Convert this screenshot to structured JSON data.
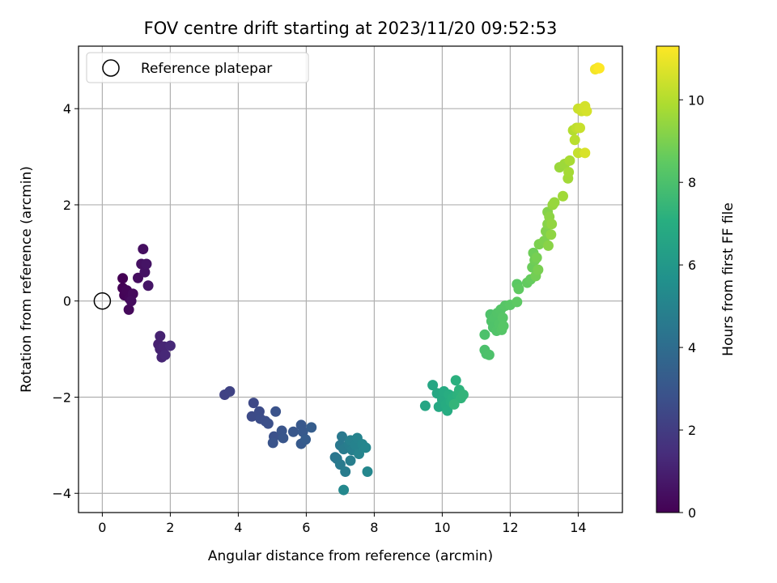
{
  "chart_data": {
    "type": "scatter",
    "title": "FOV centre drift starting at 2023/11/20 09:52:53",
    "xlabel": "Angular distance from reference (arcmin)",
    "ylabel": "Rotation from reference (arcmin)",
    "xlim": [
      -0.7,
      15.3
    ],
    "ylim": [
      -4.4,
      5.3
    ],
    "xticks": [
      0,
      2,
      4,
      6,
      8,
      10,
      12,
      14
    ],
    "yticks": [
      -4,
      -2,
      0,
      2,
      4
    ],
    "grid": true,
    "legend": {
      "placement": "top-left",
      "entries": [
        "Reference platepar"
      ]
    },
    "reference_point": {
      "x": 0,
      "y": 0,
      "label": "Reference platepar"
    },
    "colorbar": {
      "label": "Hours from first FF file",
      "range": [
        0,
        11.3
      ],
      "ticks": [
        0,
        2,
        4,
        6,
        8,
        10
      ],
      "colormap": "viridis"
    },
    "points": [
      {
        "x": 0.6,
        "y": 0.47,
        "t": 0.0
      },
      {
        "x": 0.6,
        "y": 0.27,
        "t": 0.05
      },
      {
        "x": 0.65,
        "y": 0.12,
        "t": 0.1
      },
      {
        "x": 0.72,
        "y": 0.22,
        "t": 0.15
      },
      {
        "x": 0.8,
        "y": 0.05,
        "t": 0.2
      },
      {
        "x": 0.78,
        "y": -0.18,
        "t": 0.25
      },
      {
        "x": 0.9,
        "y": 0.15,
        "t": 0.3
      },
      {
        "x": 0.85,
        "y": 0.0,
        "t": 0.35
      },
      {
        "x": 1.05,
        "y": 0.48,
        "t": 0.4
      },
      {
        "x": 1.2,
        "y": 1.08,
        "t": 0.45
      },
      {
        "x": 1.15,
        "y": 0.77,
        "t": 0.5
      },
      {
        "x": 1.25,
        "y": 0.6,
        "t": 0.55
      },
      {
        "x": 1.3,
        "y": 0.77,
        "t": 0.6
      },
      {
        "x": 1.35,
        "y": 0.32,
        "t": 0.65
      },
      {
        "x": 1.65,
        "y": -0.9,
        "t": 1.0
      },
      {
        "x": 1.7,
        "y": -0.73,
        "t": 1.05
      },
      {
        "x": 1.7,
        "y": -1.0,
        "t": 1.1
      },
      {
        "x": 1.75,
        "y": -1.17,
        "t": 1.15
      },
      {
        "x": 1.82,
        "y": -0.95,
        "t": 1.2
      },
      {
        "x": 1.85,
        "y": -1.12,
        "t": 1.25
      },
      {
        "x": 2.0,
        "y": -0.93,
        "t": 1.3
      },
      {
        "x": 3.6,
        "y": -1.95,
        "t": 2.2
      },
      {
        "x": 3.75,
        "y": -1.88,
        "t": 2.25
      },
      {
        "x": 4.45,
        "y": -2.12,
        "t": 2.5
      },
      {
        "x": 4.4,
        "y": -2.4,
        "t": 2.55
      },
      {
        "x": 4.62,
        "y": -2.3,
        "t": 2.6
      },
      {
        "x": 4.65,
        "y": -2.45,
        "t": 2.65
      },
      {
        "x": 4.8,
        "y": -2.5,
        "t": 2.7
      },
      {
        "x": 4.88,
        "y": -2.55,
        "t": 2.75
      },
      {
        "x": 5.05,
        "y": -2.82,
        "t": 2.8
      },
      {
        "x": 5.1,
        "y": -2.3,
        "t": 2.85
      },
      {
        "x": 5.02,
        "y": -2.95,
        "t": 2.9
      },
      {
        "x": 5.28,
        "y": -2.7,
        "t": 2.95
      },
      {
        "x": 5.32,
        "y": -2.85,
        "t": 3.0
      },
      {
        "x": 5.62,
        "y": -2.72,
        "t": 3.05
      },
      {
        "x": 5.85,
        "y": -2.58,
        "t": 3.1
      },
      {
        "x": 5.9,
        "y": -2.72,
        "t": 3.15
      },
      {
        "x": 5.85,
        "y": -2.97,
        "t": 3.2
      },
      {
        "x": 5.98,
        "y": -2.88,
        "t": 3.25
      },
      {
        "x": 6.15,
        "y": -2.63,
        "t": 3.3
      },
      {
        "x": 6.85,
        "y": -3.25,
        "t": 4.4
      },
      {
        "x": 6.9,
        "y": -3.28,
        "t": 4.45
      },
      {
        "x": 7.0,
        "y": -3.0,
        "t": 4.5
      },
      {
        "x": 7.05,
        "y": -2.82,
        "t": 4.55
      },
      {
        "x": 7.0,
        "y": -3.4,
        "t": 4.6
      },
      {
        "x": 7.1,
        "y": -3.08,
        "t": 4.65
      },
      {
        "x": 7.15,
        "y": -3.55,
        "t": 4.7
      },
      {
        "x": 7.25,
        "y": -2.98,
        "t": 4.75
      },
      {
        "x": 7.3,
        "y": -3.32,
        "t": 4.8
      },
      {
        "x": 7.35,
        "y": -3.1,
        "t": 4.85
      },
      {
        "x": 7.3,
        "y": -2.9,
        "t": 4.9
      },
      {
        "x": 7.45,
        "y": -3.0,
        "t": 4.95
      },
      {
        "x": 7.5,
        "y": -2.85,
        "t": 5.0
      },
      {
        "x": 7.55,
        "y": -3.18,
        "t": 5.05
      },
      {
        "x": 7.65,
        "y": -2.98,
        "t": 5.1
      },
      {
        "x": 7.75,
        "y": -3.05,
        "t": 5.15
      },
      {
        "x": 7.8,
        "y": -3.55,
        "t": 5.2
      },
      {
        "x": 7.1,
        "y": -3.93,
        "t": 5.25
      },
      {
        "x": 9.5,
        "y": -2.18,
        "t": 6.6
      },
      {
        "x": 9.72,
        "y": -1.75,
        "t": 6.65
      },
      {
        "x": 9.85,
        "y": -1.92,
        "t": 6.7
      },
      {
        "x": 9.9,
        "y": -2.2,
        "t": 6.75
      },
      {
        "x": 10.0,
        "y": -2.05,
        "t": 6.8
      },
      {
        "x": 10.05,
        "y": -1.88,
        "t": 6.85
      },
      {
        "x": 10.1,
        "y": -2.15,
        "t": 6.9
      },
      {
        "x": 10.15,
        "y": -2.28,
        "t": 6.95
      },
      {
        "x": 10.2,
        "y": -1.95,
        "t": 7.0
      },
      {
        "x": 10.25,
        "y": -2.1,
        "t": 7.05
      },
      {
        "x": 10.3,
        "y": -2.02,
        "t": 7.1
      },
      {
        "x": 10.4,
        "y": -1.65,
        "t": 7.15
      },
      {
        "x": 10.45,
        "y": -1.95,
        "t": 7.2
      },
      {
        "x": 10.5,
        "y": -1.85,
        "t": 7.25
      },
      {
        "x": 10.55,
        "y": -2.02,
        "t": 7.3
      },
      {
        "x": 10.62,
        "y": -1.95,
        "t": 7.35
      },
      {
        "x": 10.35,
        "y": -2.15,
        "t": 7.4
      },
      {
        "x": 11.25,
        "y": -1.02,
        "t": 8.0
      },
      {
        "x": 11.3,
        "y": -1.1,
        "t": 8.02
      },
      {
        "x": 11.25,
        "y": -0.7,
        "t": 8.04
      },
      {
        "x": 11.38,
        "y": -1.12,
        "t": 8.06
      },
      {
        "x": 11.42,
        "y": -0.28,
        "t": 8.08
      },
      {
        "x": 11.45,
        "y": -0.42,
        "t": 8.1
      },
      {
        "x": 11.5,
        "y": -0.55,
        "t": 8.12
      },
      {
        "x": 11.55,
        "y": -0.35,
        "t": 8.14
      },
      {
        "x": 11.6,
        "y": -0.62,
        "t": 8.16
      },
      {
        "x": 11.62,
        "y": -0.25,
        "t": 8.18
      },
      {
        "x": 11.68,
        "y": -0.48,
        "t": 8.2
      },
      {
        "x": 11.72,
        "y": -0.18,
        "t": 8.22
      },
      {
        "x": 11.75,
        "y": -0.6,
        "t": 8.24
      },
      {
        "x": 11.78,
        "y": -0.35,
        "t": 8.26
      },
      {
        "x": 11.85,
        "y": -0.1,
        "t": 8.28
      },
      {
        "x": 11.8,
        "y": -0.52,
        "t": 8.3
      },
      {
        "x": 12.0,
        "y": -0.08,
        "t": 8.35
      },
      {
        "x": 12.2,
        "y": 0.35,
        "t": 8.4
      },
      {
        "x": 12.2,
        "y": -0.02,
        "t": 8.45
      },
      {
        "x": 12.25,
        "y": 0.25,
        "t": 8.5
      },
      {
        "x": 12.5,
        "y": 0.38,
        "t": 8.55
      },
      {
        "x": 12.6,
        "y": 0.45,
        "t": 8.6
      },
      {
        "x": 12.65,
        "y": 0.7,
        "t": 8.7
      },
      {
        "x": 12.68,
        "y": 1.0,
        "t": 8.75
      },
      {
        "x": 12.72,
        "y": 0.85,
        "t": 8.8
      },
      {
        "x": 12.75,
        "y": 0.52,
        "t": 8.85
      },
      {
        "x": 12.78,
        "y": 0.9,
        "t": 8.9
      },
      {
        "x": 12.82,
        "y": 0.65,
        "t": 8.95
      },
      {
        "x": 12.85,
        "y": 1.18,
        "t": 9.0
      },
      {
        "x": 13.0,
        "y": 1.25,
        "t": 9.05
      },
      {
        "x": 13.05,
        "y": 1.45,
        "t": 9.1
      },
      {
        "x": 13.1,
        "y": 1.85,
        "t": 9.15
      },
      {
        "x": 13.1,
        "y": 1.6,
        "t": 9.2
      },
      {
        "x": 13.12,
        "y": 1.15,
        "t": 9.25
      },
      {
        "x": 13.15,
        "y": 1.75,
        "t": 9.3
      },
      {
        "x": 13.2,
        "y": 1.38,
        "t": 9.35
      },
      {
        "x": 13.22,
        "y": 1.6,
        "t": 9.4
      },
      {
        "x": 13.25,
        "y": 2.0,
        "t": 9.45
      },
      {
        "x": 13.3,
        "y": 2.05,
        "t": 9.5
      },
      {
        "x": 13.45,
        "y": 2.78,
        "t": 9.55
      },
      {
        "x": 13.6,
        "y": 2.85,
        "t": 9.6
      },
      {
        "x": 13.55,
        "y": 2.18,
        "t": 9.65
      },
      {
        "x": 13.7,
        "y": 2.55,
        "t": 9.7
      },
      {
        "x": 13.72,
        "y": 2.68,
        "t": 9.75
      },
      {
        "x": 13.75,
        "y": 2.92,
        "t": 9.8
      },
      {
        "x": 13.85,
        "y": 3.55,
        "t": 10.0
      },
      {
        "x": 13.9,
        "y": 3.35,
        "t": 10.1
      },
      {
        "x": 13.95,
        "y": 3.6,
        "t": 10.2
      },
      {
        "x": 14.0,
        "y": 3.08,
        "t": 10.3
      },
      {
        "x": 14.05,
        "y": 3.6,
        "t": 10.35
      },
      {
        "x": 14.0,
        "y": 4.0,
        "t": 10.4
      },
      {
        "x": 14.1,
        "y": 3.95,
        "t": 10.45
      },
      {
        "x": 14.15,
        "y": 4.0,
        "t": 10.5
      },
      {
        "x": 14.2,
        "y": 4.05,
        "t": 10.55
      },
      {
        "x": 14.25,
        "y": 3.95,
        "t": 10.6
      },
      {
        "x": 14.2,
        "y": 3.08,
        "t": 10.65
      },
      {
        "x": 14.5,
        "y": 4.82,
        "t": 11.1
      },
      {
        "x": 14.58,
        "y": 4.85,
        "t": 11.2
      },
      {
        "x": 14.62,
        "y": 4.84,
        "t": 11.3
      }
    ]
  }
}
